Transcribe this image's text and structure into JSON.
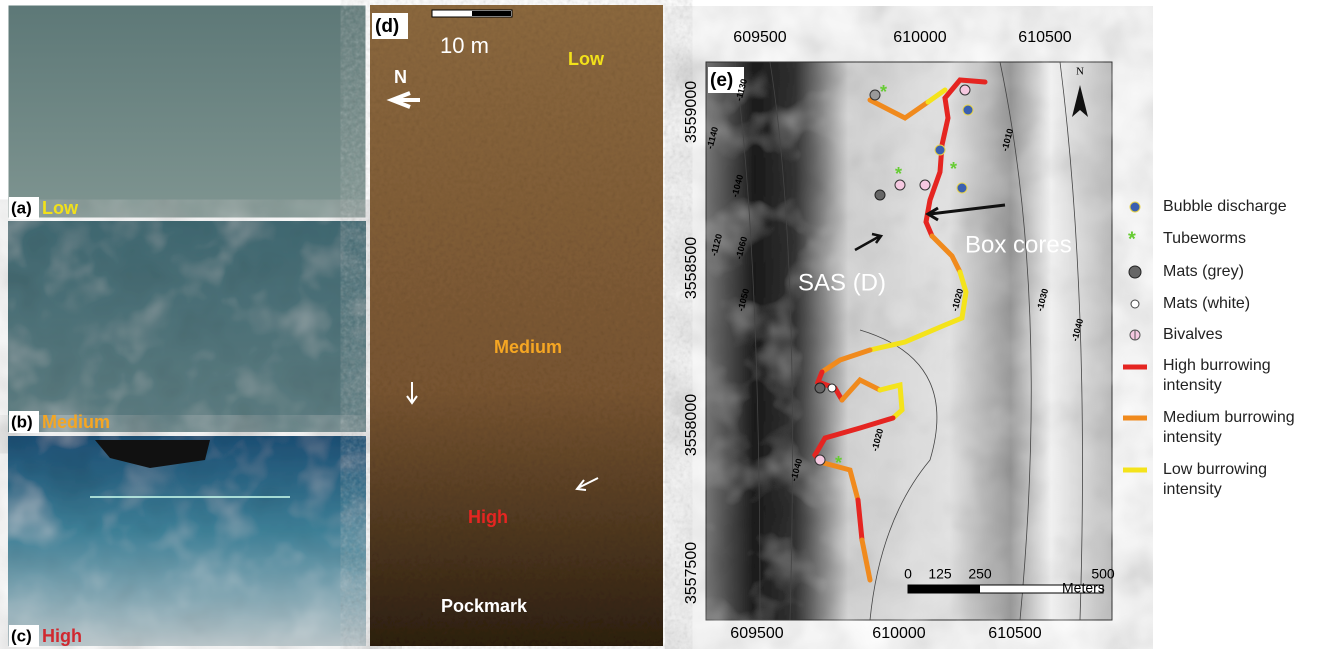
{
  "panels": {
    "a": {
      "label": "(a)",
      "level": "Low"
    },
    "b": {
      "label": "(b)",
      "level": "Medium"
    },
    "c": {
      "label": "(c)",
      "level": "High"
    },
    "d": {
      "label": "(d)",
      "scale": "10 m",
      "north": "N",
      "zones": [
        "Low",
        "Medium",
        "High",
        "Pockmark"
      ]
    },
    "e": {
      "label": "(e)",
      "x_ticks": [
        609500,
        610000,
        610500
      ],
      "y_ticks": [
        3559000,
        3558500,
        3558000,
        3557500
      ],
      "contours": [
        "-1130",
        "-1140",
        "-1120",
        "-1060",
        "-1050",
        "-1040",
        "-1010",
        "-1030",
        "-1040",
        "-1020",
        "-1020",
        "-1040"
      ],
      "annotations": [
        "SAS (D)",
        "Box cores"
      ],
      "scale_bar": {
        "ticks": [
          0,
          125,
          250,
          500
        ],
        "unit": "Meters"
      },
      "north": "N"
    }
  },
  "legend": [
    "Bubble discharge",
    "Tubeworms",
    "Mats (grey)",
    "Mats (white)",
    "Bivalves",
    "High burrowing intensity",
    "Medium burrowing intensity",
    "Low burrowing intensity"
  ]
}
